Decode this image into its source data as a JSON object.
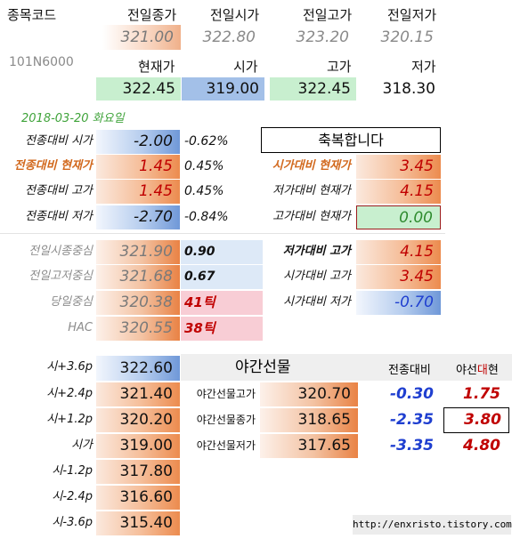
{
  "header": {
    "code_label": "종목코드",
    "prev_close": "전일종가",
    "prev_open": "전일시가",
    "prev_high": "전일고가",
    "prev_low": "전일저가"
  },
  "prev_values": {
    "close": "321.00",
    "open": "322.80",
    "high": "323.20",
    "low": "320.15"
  },
  "code": "101N6000",
  "current_header": {
    "current": "현재가",
    "open": "시가",
    "high": "고가",
    "low": "저가"
  },
  "current_values": {
    "current": "322.45",
    "open": "319.00",
    "high": "322.45",
    "low": "318.30"
  },
  "date": "2018-03-20 화요일",
  "congrats": "축복합니다",
  "vs_prev": [
    {
      "label": "전종대비 시가",
      "value": "-2.00",
      "pct": "-0.62%"
    },
    {
      "label": "전종대비 현재가",
      "value": "1.45",
      "pct": "0.45%"
    },
    {
      "label": "전종대비 고가",
      "value": "1.45",
      "pct": "0.45%"
    },
    {
      "label": "전종대비 저가",
      "value": "-2.70",
      "pct": "-0.84%"
    }
  ],
  "vs_right": [
    {
      "label": "시가대비 현재가",
      "value": "3.45"
    },
    {
      "label": "저가대비 현재가",
      "value": "4.15"
    },
    {
      "label": "고가대비 현재가",
      "value": "0.00"
    }
  ],
  "centers": [
    {
      "label": "전일시종중심",
      "value": "321.90",
      "diff": "0.90"
    },
    {
      "label": "전일고저중심",
      "value": "321.68",
      "diff": "0.67"
    },
    {
      "label": "당일중심",
      "value": "320.38",
      "diff": "41틱"
    },
    {
      "label": "HAC",
      "value": "320.55",
      "diff": "38틱"
    }
  ],
  "centers_right": [
    {
      "label": "저가대비 고가",
      "value": "4.15"
    },
    {
      "label": "시가대비 고가",
      "value": "3.45"
    },
    {
      "label": "시가대비 저가",
      "value": "-0.70"
    }
  ],
  "levels": [
    {
      "label": "시+3.6p",
      "value": "322.60"
    },
    {
      "label": "시+2.4p",
      "value": "321.40"
    },
    {
      "label": "시+1.2p",
      "value": "320.20"
    },
    {
      "label": "시가",
      "value": "319.00"
    },
    {
      "label": "시-1.2p",
      "value": "317.80"
    },
    {
      "label": "시-2.4p",
      "value": "316.60"
    },
    {
      "label": "시-3.6p",
      "value": "315.40"
    }
  ],
  "night": {
    "title": "야간선물",
    "col_vs": "전종대비",
    "col_spread_a": "야선",
    "col_spread_b": "대",
    "col_spread_c": "현",
    "rows": [
      {
        "label": "야간선물고가",
        "value": "320.70",
        "vs": "-0.30",
        "spread": "1.75"
      },
      {
        "label": "야간선물종가",
        "value": "318.65",
        "vs": "-2.35",
        "spread": "3.80"
      },
      {
        "label": "야간선물저가",
        "value": "317.65",
        "vs": "-3.35",
        "spread": "4.80"
      }
    ]
  },
  "footer_url": "http://enxristo.tistory.com"
}
